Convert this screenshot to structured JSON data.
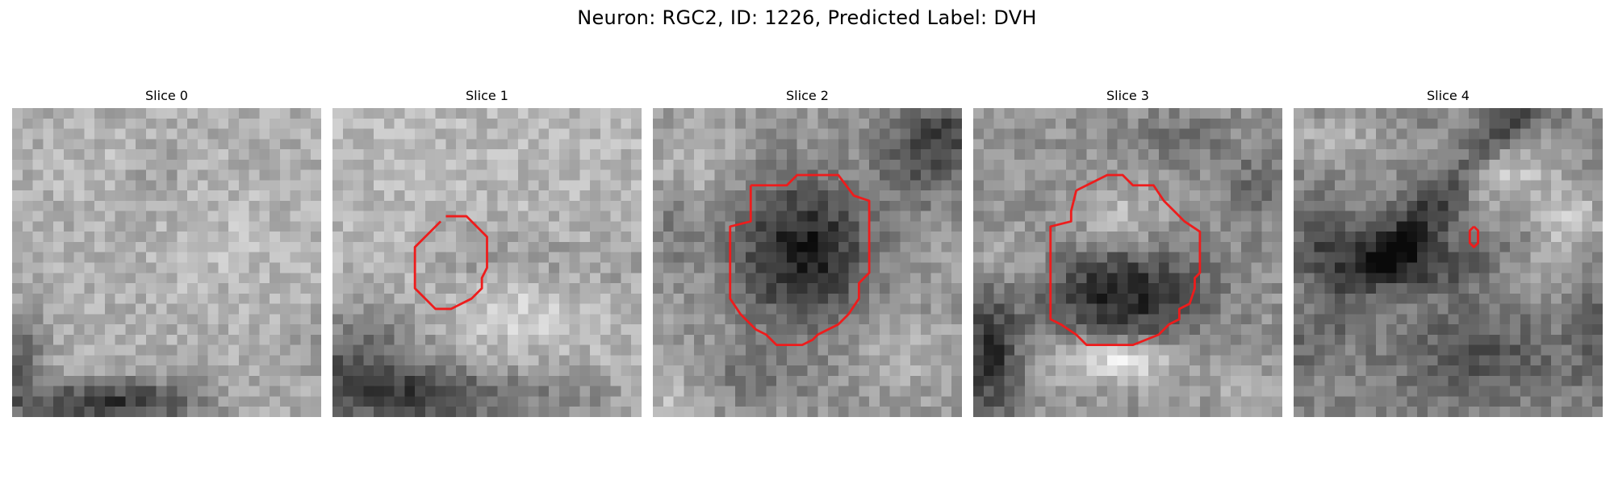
{
  "figure": {
    "title": "Neuron: RGC2, ID: 1226, Predicted Label: DVH"
  },
  "style": {
    "contour_color": "#ee1c1c"
  },
  "panels": [
    {
      "title": "Slice 0",
      "has_contour": false,
      "palette": "grayscale",
      "pattern": "light mottled texture with dark band at bottom-left and bottom"
    },
    {
      "title": "Slice 1",
      "has_contour": true,
      "palette": "grayscale",
      "pattern": "light mottled texture, darker region lower-left and bottom"
    },
    {
      "title": "Slice 2",
      "has_contour": true,
      "palette": "grayscale",
      "pattern": "large dark circular cell body in center on lighter background"
    },
    {
      "title": "Slice 3",
      "has_contour": true,
      "palette": "grayscale",
      "pattern": "lighter nucleus upper center with dark crescent below"
    },
    {
      "title": "Slice 4",
      "has_contour": true,
      "palette": "grayscale",
      "pattern": "bright diagonal streaks with dark band across middle"
    }
  ]
}
